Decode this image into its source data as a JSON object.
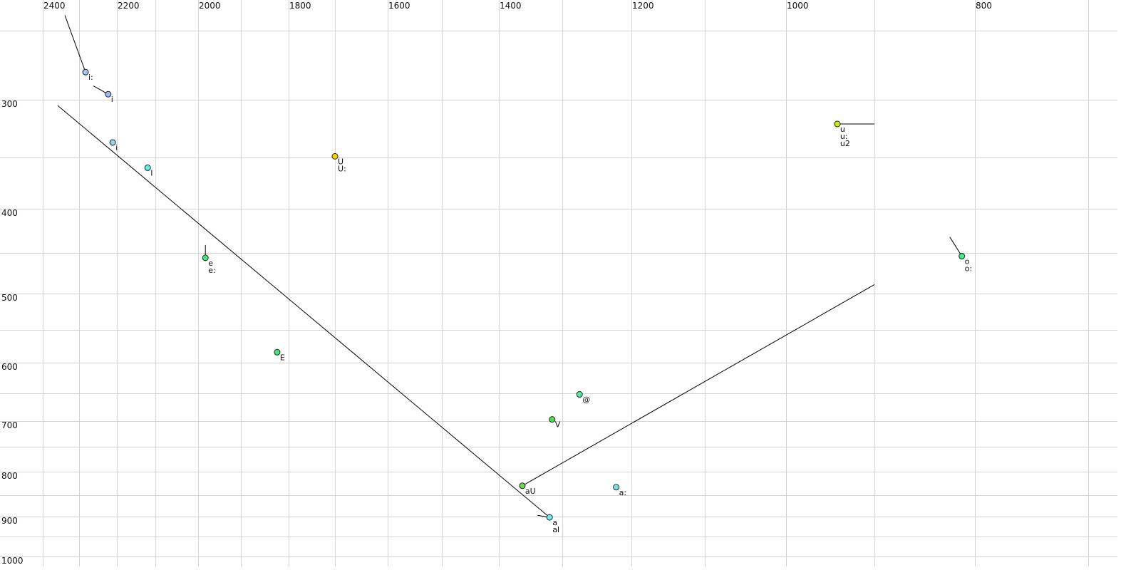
{
  "chart_data": {
    "type": "scatter",
    "title": "",
    "xlabel": "",
    "ylabel": "",
    "x_axis": {
      "reversed": true,
      "scale": "nonlinear",
      "range": [
        2400,
        700
      ],
      "grid_step": 100,
      "tick_labels": [
        2400,
        2200,
        2000,
        1800,
        1600,
        1400,
        1200,
        1000,
        800
      ],
      "position": "top"
    },
    "y_axis": {
      "reversed": false,
      "scale": "nonlinear",
      "range": [
        250,
        1000
      ],
      "grid_step": 50,
      "tick_labels": [
        300,
        400,
        500,
        600,
        700,
        800,
        900,
        1000
      ],
      "position": "left"
    },
    "grid": true,
    "points": [
      {
        "labels": [
          "i:"
        ],
        "x": 2283,
        "y": 280,
        "color": "#a8c4f4",
        "trajectory_from": [
          2339,
          239
        ]
      },
      {
        "labels": [
          "i"
        ],
        "x": 2223,
        "y": 296,
        "color": "#a0b8f0",
        "trajectory_from": [
          2262,
          290
        ]
      },
      {
        "labels": [
          "i"
        ],
        "x": 2211,
        "y": 337,
        "color": "#98d0f4"
      },
      {
        "labels": [
          "I"
        ],
        "x": 2120,
        "y": 360,
        "color": "#60f0dc"
      },
      {
        "labels": [
          "e",
          "e:"
        ],
        "x": 1983,
        "y": 456,
        "color": "#48e878",
        "trajectory_from": [
          1983,
          441
        ]
      },
      {
        "labels": [
          "E"
        ],
        "x": 1824,
        "y": 584,
        "color": "#48e878"
      },
      {
        "labels": [
          "U",
          "U:"
        ],
        "x": 1700,
        "y": 349,
        "color": "#f8d000"
      },
      {
        "labels": [
          "u",
          "u:",
          "u2"
        ],
        "x": 942,
        "y": 321,
        "color": "#c8f000",
        "trajectory_from": [
          900,
          321
        ]
      },
      {
        "labels": [
          "o",
          "o:"
        ],
        "x": 813,
        "y": 454,
        "color": "#48e888",
        "trajectory_from": [
          825,
          432
        ]
      },
      {
        "labels": [
          "@"
        ],
        "x": 1275,
        "y": 652,
        "color": "#60e8a0"
      },
      {
        "labels": [
          "V"
        ],
        "x": 1316,
        "y": 697,
        "color": "#48e048"
      },
      {
        "labels": [
          "aU"
        ],
        "x": 1363,
        "y": 830,
        "color": "#60e040",
        "trajectory_from": [
          900,
          489
        ]
      },
      {
        "labels": [
          "a:"
        ],
        "x": 1222,
        "y": 833,
        "color": "#70e8e8"
      },
      {
        "labels": [
          "a",
          "aI"
        ],
        "x": 1320,
        "y": 902,
        "color": "#70e8f0",
        "trajectory_from": [
          1339,
          897
        ]
      }
    ],
    "extra_trajectories": [
      {
        "from": [
          2359,
          305
        ],
        "to": [
          1320,
          902
        ]
      }
    ]
  }
}
